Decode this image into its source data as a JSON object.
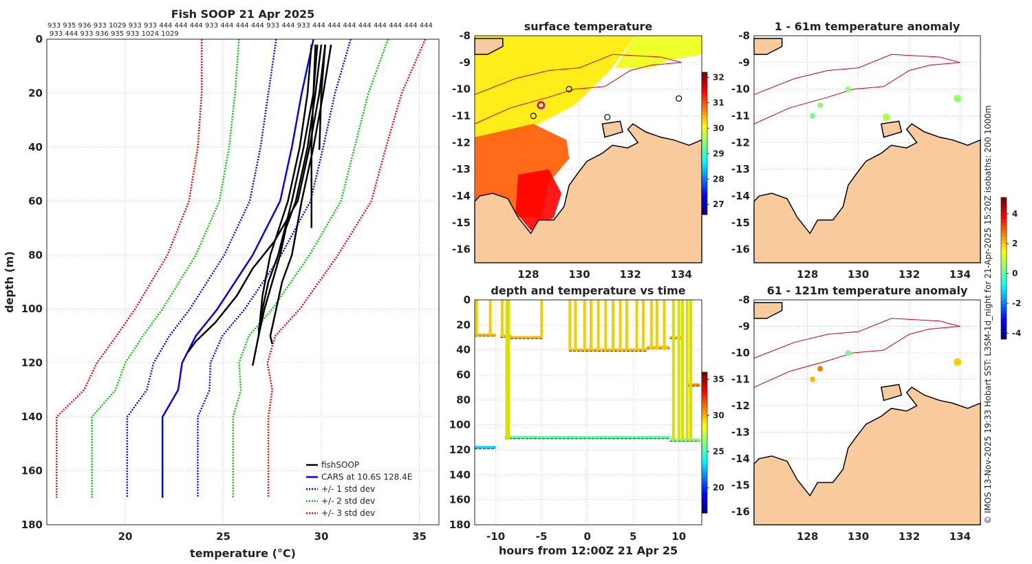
{
  "title": "Fish SOOP 21 Apr 2025",
  "id_line_1": "933 935 936 933 1029 933 933 444 444 444 933 444 444 444 933 444 933 444 444 444 444 444 444 444 444",
  "id_line_2": "933 444 933 936 935 933 1024 1029",
  "credit": "© IMOS 13-Nov-2025 19:33 Hobart SST: L3SM-1d_night for 21-Apr-2025 15:20Z isobaths: 200  1000m",
  "colors": {
    "land": "#f9cb9c",
    "fishsoop": "#000000",
    "cars": "#0000ff",
    "std1": "#0000ff",
    "std2": "#00cc00",
    "std3": "#ff0000",
    "isobath": "#cc0000"
  },
  "chart_data": [
    {
      "id": "profile",
      "type": "line",
      "title": "Fish SOOP 21 Apr 2025",
      "xlabel": "temperature (°C)",
      "xlabel_main": "temperature (",
      "xlabel_sup": "o",
      "xlabel_end": "C)",
      "ylabel": "depth (m)",
      "xlim": [
        16,
        36
      ],
      "ylim": [
        0,
        180
      ],
      "xticks": [
        20,
        25,
        30,
        35
      ],
      "yticks": [
        0,
        20,
        40,
        60,
        80,
        100,
        120,
        140,
        160,
        180
      ],
      "grid": true,
      "legend_position": "bottom-right",
      "legend": [
        "fishSOOP",
        "CARS at 10.6S 128.4E",
        "+/- 1 std dev",
        "+/- 2 std dev",
        "+/- 3 std dev"
      ],
      "cars": {
        "depth": [
          0,
          20,
          40,
          60,
          80,
          100,
          110,
          120,
          130,
          140,
          170
        ],
        "temp": [
          29.6,
          29.0,
          28.5,
          27.9,
          26.5,
          24.7,
          23.6,
          22.9,
          22.7,
          21.9,
          21.9
        ],
        "std": [
          1.9,
          1.7,
          1.6,
          1.55,
          1.45,
          1.4,
          1.35,
          1.45,
          1.6,
          1.8,
          1.8
        ]
      },
      "fishsoop": [
        {
          "depth": [
            2,
            20,
            40,
            60,
            75,
            85,
            95,
            105,
            112,
            116
          ],
          "temp": [
            30.2,
            29.9,
            29.4,
            28.8,
            27.6,
            26.5,
            25.7,
            24.6,
            23.6,
            23.2
          ]
        },
        {
          "depth": [
            2,
            20,
            40,
            60,
            70,
            80,
            90,
            100,
            110,
            121
          ],
          "temp": [
            30.0,
            29.7,
            29.3,
            28.7,
            28.2,
            27.9,
            27.5,
            27.1,
            26.8,
            26.5
          ]
        },
        {
          "depth": [
            2,
            20,
            40,
            60,
            80,
            90,
            100,
            110,
            113
          ],
          "temp": [
            30.5,
            30.1,
            29.6,
            29.0,
            28.5,
            28.0,
            27.7,
            27.4,
            27.5
          ]
        },
        {
          "depth": [
            2,
            20,
            40,
            60,
            80,
            90,
            100,
            108
          ],
          "temp": [
            29.8,
            29.6,
            29.1,
            28.5,
            27.8,
            27.3,
            27.0,
            26.8
          ]
        },
        {
          "depth": [
            2,
            20,
            41
          ],
          "temp": [
            30.2,
            30.0,
            29.9
          ]
        },
        {
          "depth": [
            2,
            20,
            40,
            55,
            70
          ],
          "temp": [
            29.7,
            29.6,
            29.5,
            29.5,
            29.5
          ]
        },
        {
          "depth": [
            2,
            20,
            40,
            60,
            80,
            95,
            110
          ],
          "temp": [
            29.5,
            29.3,
            28.9,
            28.3,
            27.4,
            27.0,
            26.8
          ]
        }
      ]
    },
    {
      "id": "sst_map",
      "type": "heatmap",
      "title": "surface temperature",
      "xlim": [
        125.9,
        134.8
      ],
      "ylim": [
        -16.5,
        -8
      ],
      "xticks": [
        128,
        130,
        132,
        134
      ],
      "yticks": [
        -8,
        -9,
        -10,
        -11,
        -12,
        -13,
        -14,
        -15,
        -16
      ],
      "colorbar": {
        "range": [
          26.6,
          32.2
        ],
        "ticks": [
          27,
          28,
          29,
          30,
          31,
          32
        ]
      },
      "stations": [
        {
          "lon": 129.6,
          "lat": -10.0
        },
        {
          "lon": 128.2,
          "lat": -11.0
        },
        {
          "lon": 128.5,
          "lat": -10.6
        },
        {
          "lon": 131.1,
          "lat": -11.05
        },
        {
          "lon": 133.9,
          "lat": -10.35
        }
      ]
    },
    {
      "id": "depth_time",
      "type": "scatter",
      "title": "depth and temperature vs time",
      "xlabel": "hours from 12:00Z 21 Apr 25",
      "xlim": [
        -12.3,
        12.5
      ],
      "ylim": [
        0,
        180
      ],
      "xticks": [
        -10,
        -5,
        0,
        5,
        10
      ],
      "yticks": [
        0,
        20,
        40,
        60,
        80,
        100,
        120,
        140,
        160,
        180
      ],
      "colorbar": {
        "range": [
          16.5,
          36
        ],
        "ticks": [
          20,
          25,
          30,
          35
        ]
      },
      "segments": [
        {
          "t0": -12.3,
          "t1": -10.0,
          "depth": 28,
          "temp": 30
        },
        {
          "t0": -12.3,
          "t1": -10.0,
          "depth": 118,
          "temp": 23
        },
        {
          "t0": -9.5,
          "t1": -8.3,
          "depth": 29,
          "temp": 30
        },
        {
          "t0": -8.4,
          "t1": -4.9,
          "depth": 30,
          "temp": 30
        },
        {
          "t0": -9.0,
          "t1": 9.0,
          "depth": 110,
          "temp": 25.5
        },
        {
          "t0": -2.0,
          "t1": 6.5,
          "depth": 40,
          "temp": 30
        },
        {
          "t0": 6.5,
          "t1": 9.0,
          "depth": 38,
          "temp": 30
        },
        {
          "t0": 9.0,
          "t1": 10.4,
          "depth": 30,
          "temp": 30
        },
        {
          "t0": 9.0,
          "t1": 12.3,
          "depth": 112,
          "temp": 26
        },
        {
          "t0": 11.0,
          "t1": 12.3,
          "depth": 68,
          "temp": 31
        }
      ]
    },
    {
      "id": "anom_0_61",
      "type": "scatter",
      "title": "1 - 61m temperature anomaly",
      "xlim": [
        125.9,
        134.8
      ],
      "ylim": [
        -16.5,
        -8
      ],
      "xticks": [
        128,
        130,
        132,
        134
      ],
      "yticks": [
        -8,
        -9,
        -10,
        -11,
        -12,
        -13,
        -14,
        -15,
        -16
      ],
      "points": [
        {
          "lon": 129.6,
          "lat": -10.0,
          "anom": 0.5
        },
        {
          "lon": 128.2,
          "lat": -11.0,
          "anom": 0.2
        },
        {
          "lon": 128.5,
          "lat": -10.6,
          "anom": 0.4
        },
        {
          "lon": 131.1,
          "lat": -11.05,
          "anom": 0.8
        },
        {
          "lon": 133.9,
          "lat": -10.35,
          "anom": 0.6
        }
      ]
    },
    {
      "id": "anom_61_121",
      "type": "scatter",
      "title": "61 - 121m temperature anomaly",
      "xlim": [
        125.9,
        134.8
      ],
      "ylim": [
        -16.5,
        -8
      ],
      "xticks": [
        128,
        130,
        132,
        134
      ],
      "yticks": [
        -8,
        -9,
        -10,
        -11,
        -12,
        -13,
        -14,
        -15,
        -16
      ],
      "colorbar": {
        "range": [
          -4.4,
          5.1
        ],
        "ticks": [
          -4,
          -2,
          0,
          2,
          4
        ]
      },
      "points": [
        {
          "lon": 129.6,
          "lat": -10.0,
          "anom": 0.2
        },
        {
          "lon": 128.2,
          "lat": -11.0,
          "anom": 2.2
        },
        {
          "lon": 128.5,
          "lat": -10.6,
          "anom": 2.8
        },
        {
          "lon": 133.9,
          "lat": -10.35,
          "anom": 2.0
        }
      ]
    }
  ]
}
